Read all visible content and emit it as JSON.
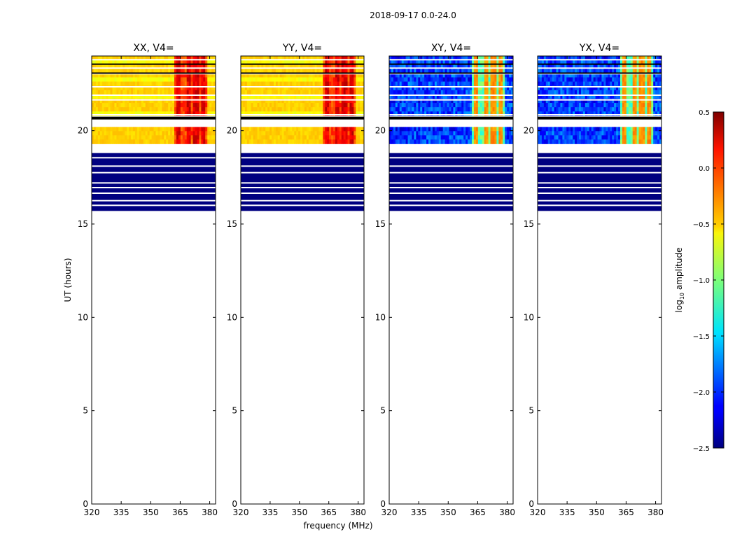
{
  "chart_data": {
    "type": "heatmap",
    "suptitle": "2018-09-17 0.0-24.0",
    "panels": [
      {
        "title": "XX, V4=",
        "kind": "parallel"
      },
      {
        "title": "YY, V4=",
        "kind": "parallel"
      },
      {
        "title": "XY, V4=",
        "kind": "cross"
      },
      {
        "title": "YX, V4=",
        "kind": "cross"
      }
    ],
    "xlabel": "frequency (MHz)",
    "ylabel": "UT (hours)",
    "xlim": [
      320,
      383
    ],
    "ylim": [
      0,
      24
    ],
    "xticks": [
      {
        "value": 320,
        "label": "320"
      },
      {
        "value": 335,
        "label": "335"
      },
      {
        "value": 350,
        "label": "350"
      },
      {
        "value": 365,
        "label": "365"
      },
      {
        "value": 380,
        "label": "380"
      }
    ],
    "yticks": [
      {
        "value": 0,
        "label": "0"
      },
      {
        "value": 5,
        "label": "5"
      },
      {
        "value": 10,
        "label": "10"
      },
      {
        "value": 15,
        "label": "15"
      },
      {
        "value": 20,
        "label": "20"
      }
    ],
    "colorbar": {
      "label_base": "log",
      "label_sub": "10",
      "label_rest": " amplitude",
      "range": [
        -2.5,
        0.5
      ],
      "ticks": [
        {
          "value": 0.5,
          "label": "0.5"
        },
        {
          "value": 0.0,
          "label": "0.0"
        },
        {
          "value": -0.5,
          "label": "−0.5"
        },
        {
          "value": -1.0,
          "label": "−1.0"
        },
        {
          "value": -1.5,
          "label": "−1.5"
        },
        {
          "value": -2.0,
          "label": "−2.0"
        },
        {
          "value": -2.5,
          "label": "−2.5"
        }
      ]
    },
    "data_bands_ut": [
      {
        "from": 15.7,
        "to": 18.8,
        "state": "flagged_low"
      },
      {
        "from": 19.3,
        "to": 20.2,
        "state": "observed"
      },
      {
        "from": 20.8,
        "to": 24.0,
        "state": "observed"
      }
    ],
    "gap_lines_ut": [
      23.8,
      23.35,
      23.05,
      22.35,
      21.9,
      21.65,
      20.85,
      20.7,
      18.95,
      18.85,
      18.55,
      18.1,
      17.75,
      17.2,
      16.95,
      16.65,
      16.25,
      16.0
    ],
    "black_flag_ut": [
      [
        20.6,
        20.75
      ],
      [
        23.05,
        23.12
      ],
      [
        23.55,
        23.6
      ]
    ],
    "interference_freq_mhz": [
      364,
      369,
      373,
      377
    ],
    "amplitude_levels_log10": {
      "parallel_base": -0.55,
      "parallel_rfi_peak": 0.35,
      "cross_base": -2.2,
      "cross_rfi_peak": -0.4,
      "flagged": -2.5
    }
  }
}
